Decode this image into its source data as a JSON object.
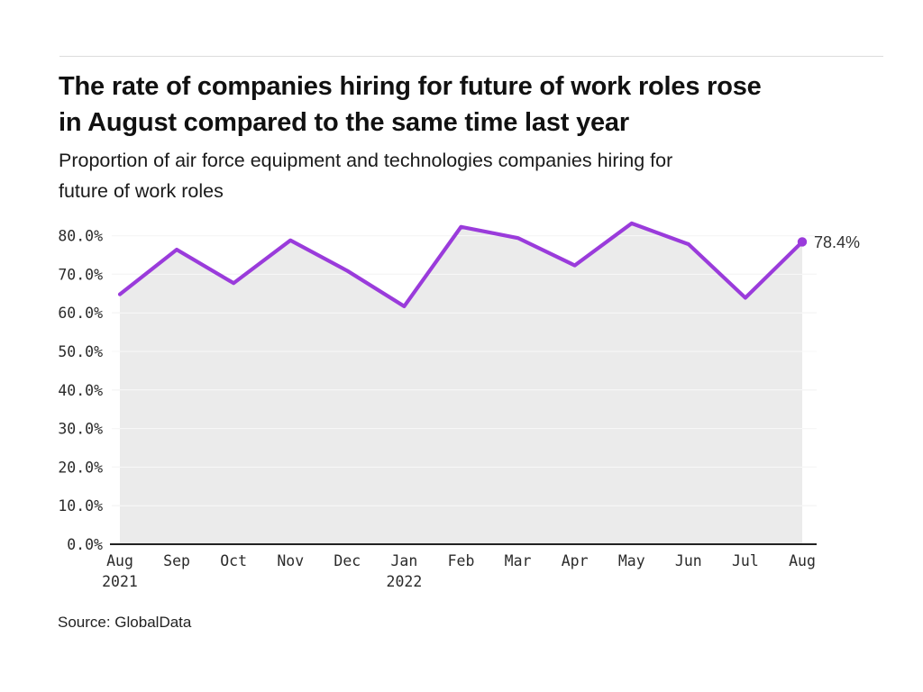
{
  "page": {
    "background": "#ffffff"
  },
  "header": {
    "title_line1": "The rate of companies hiring for future of work roles rose",
    "title_line2": "in August compared to the same time last year",
    "subtitle_line1": "Proportion of air force equipment and technologies companies hiring for",
    "subtitle_line2": "future of work roles"
  },
  "chart_data": {
    "type": "line",
    "title": "Proportion of air force equipment and technologies companies hiring for future of work roles",
    "categories": [
      "Aug",
      "Sep",
      "Oct",
      "Nov",
      "Dec",
      "Jan",
      "Feb",
      "Mar",
      "Apr",
      "May",
      "Jun",
      "Jul",
      "Aug"
    ],
    "year_labels": [
      {
        "index": 0,
        "label": "2021"
      },
      {
        "index": 5,
        "label": "2022"
      }
    ],
    "values": [
      64.8,
      76.4,
      67.7,
      78.8,
      70.9,
      61.7,
      82.3,
      79.4,
      72.3,
      83.2,
      77.8,
      63.9,
      78.4
    ],
    "end_point_label": "78.4%",
    "ylim": [
      0,
      85
    ],
    "ytick_labels": [
      "0.0%",
      "10.0%",
      "20.0%",
      "30.0%",
      "40.0%",
      "50.0%",
      "60.0%",
      "70.0%",
      "80.0%"
    ],
    "ytick_values": [
      0,
      10,
      20,
      30,
      40,
      50,
      60,
      70,
      80
    ],
    "grid": true,
    "legend_position": "none",
    "colors": {
      "line": "#9a3bdb",
      "marker": "#9a3bdb",
      "area_fill": "#ebebeb",
      "grid_under": "#e4e4e4",
      "grid_over_area": "rgba(255,255,255,0.70)",
      "axis": "#222222",
      "tick_text": "#2b2b2b",
      "annotation_text": "#333333"
    }
  },
  "footer": {
    "source": "Source: GlobalData"
  }
}
